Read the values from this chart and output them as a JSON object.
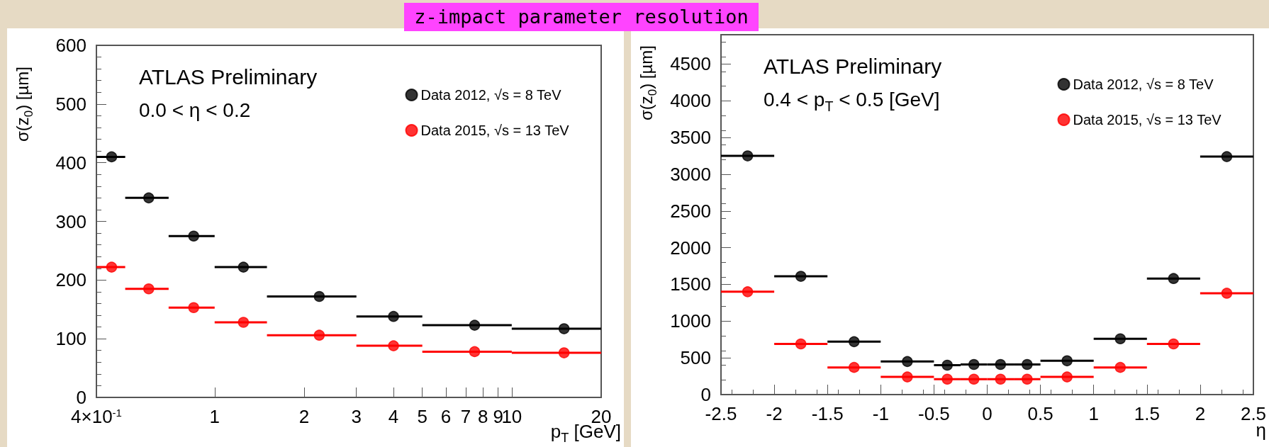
{
  "chart_data": [
    {
      "type": "scatter",
      "title": "z-impact parameter resolution",
      "xlabel": "p$_{T}$ [GeV]",
      "ylabel": "σ(z$_{0}$) [µm]",
      "log": "x",
      "grid": false,
      "legend": "top right",
      "marker": "circle",
      "annotations": [
        "ATLAS Preliminary",
        "0.0 < η < 0.2"
      ],
      "xlim": [
        0.4,
        20
      ],
      "xticks": [
        {
          "value": 0.4,
          "label": "4×10$^{-1}$"
        },
        1,
        2,
        3,
        4,
        5,
        6,
        7,
        8,
        9,
        10,
        20
      ],
      "ylim": [
        0,
        600
      ],
      "yticks": [
        0,
        100,
        200,
        300,
        400,
        500,
        600
      ],
      "x": [
        0.45,
        0.6,
        0.85,
        1.25,
        2.25,
        4,
        7.5,
        15
      ],
      "series": [
        {
          "name": "Data 2012, √s = 8 TeV",
          "color": "#000000",
          "values": [
            410,
            340,
            275,
            222,
            172,
            138,
            123,
            117
          ],
          "xerrors": [
            [
              0.4,
              0.5
            ],
            [
              0.5,
              0.7
            ],
            [
              0.7,
              1
            ],
            [
              1,
              1.5
            ],
            [
              1.5,
              3
            ],
            [
              3,
              5
            ],
            [
              5,
              10
            ],
            [
              10,
              20
            ]
          ]
        },
        {
          "name": "Data 2015, √s = 13 TeV",
          "color": "#ff0000",
          "values": [
            222,
            185,
            153,
            128,
            106,
            88,
            78,
            76
          ],
          "xerrors": [
            [
              0.4,
              0.5
            ],
            [
              0.5,
              0.7
            ],
            [
              0.7,
              1
            ],
            [
              1,
              1.5
            ],
            [
              1.5,
              3
            ],
            [
              3,
              5
            ],
            [
              5,
              10
            ],
            [
              10,
              20
            ]
          ]
        }
      ]
    },
    {
      "type": "scatter",
      "xlabel": "η",
      "ylabel": "σ(z$_{0}$) [µm]",
      "grid": false,
      "legend": "top right",
      "marker": "circle",
      "annotations": [
        "ATLAS Preliminary",
        "0.4 < p$_{T}$ < 0.5 [GeV]"
      ],
      "xlim": [
        -2.5,
        2.5
      ],
      "xticks": [
        -2.5,
        -2,
        -1.5,
        -1,
        -0.5,
        0,
        0.5,
        1,
        1.5,
        2,
        2.5
      ],
      "ylim": [
        0,
        4900
      ],
      "yticks": [
        0,
        500,
        1000,
        1500,
        2000,
        2500,
        3000,
        3500,
        4000,
        4500
      ],
      "x": [
        -2.25,
        -1.75,
        -1.25,
        -0.75,
        -0.375,
        -0.125,
        0.125,
        0.375,
        0.75,
        1.25,
        1.75,
        2.25
      ],
      "series": [
        {
          "name": "Data 2012, √s = 8 TeV",
          "color": "#000000",
          "values": [
            3250,
            1610,
            720,
            450,
            400,
            410,
            410,
            410,
            460,
            760,
            1580,
            3240
          ],
          "xerrors": [
            0.25,
            0.25,
            0.25,
            0.25,
            0.125,
            0.125,
            0.125,
            0.125,
            0.25,
            0.25,
            0.25,
            0.25
          ]
        },
        {
          "name": "Data 2015, √s = 13 TeV",
          "color": "#ff0000",
          "values": [
            1400,
            690,
            370,
            240,
            210,
            210,
            210,
            210,
            240,
            370,
            690,
            1380
          ],
          "xerrors": [
            0.25,
            0.25,
            0.25,
            0.25,
            0.125,
            0.125,
            0.125,
            0.125,
            0.25,
            0.25,
            0.25,
            0.25
          ]
        }
      ]
    }
  ]
}
